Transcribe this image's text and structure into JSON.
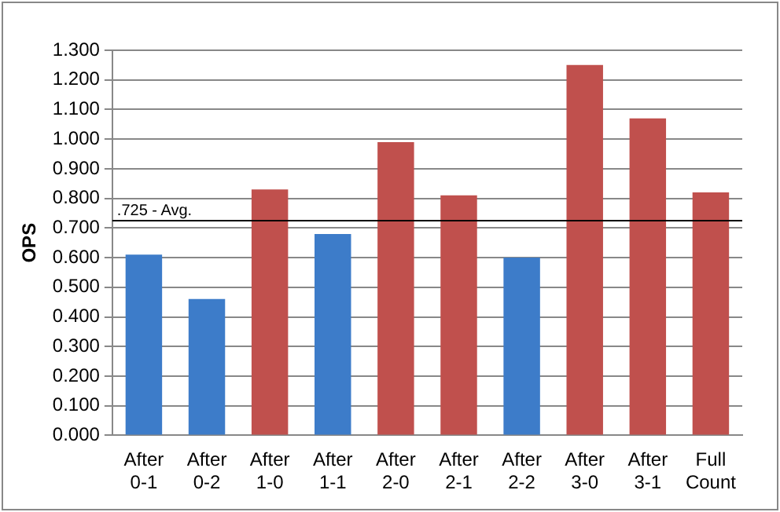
{
  "chart_data": {
    "type": "bar",
    "ylabel": "OPS",
    "categories": [
      "After 0-1",
      "After 0-2",
      "After 1-0",
      "After 1-1",
      "After 2-0",
      "After 2-1",
      "After 2-2",
      "After 3-0",
      "After 3-1",
      "Full Count"
    ],
    "values": [
      0.61,
      0.46,
      0.83,
      0.68,
      0.99,
      0.81,
      0.6,
      1.25,
      1.07,
      0.82
    ],
    "colors": [
      "#3d7cc9",
      "#3d7cc9",
      "#c0504d",
      "#3d7cc9",
      "#c0504d",
      "#c0504d",
      "#3d7cc9",
      "#c0504d",
      "#c0504d",
      "#c0504d"
    ],
    "ylim": [
      0,
      1.3
    ],
    "yticks": [
      {
        "value": 0,
        "label": "0.000"
      },
      {
        "value": 0.1,
        "label": "0.100"
      },
      {
        "value": 0.2,
        "label": "0.200"
      },
      {
        "value": 0.3,
        "label": "0.300"
      },
      {
        "value": 0.4,
        "label": "0.400"
      },
      {
        "value": 0.5,
        "label": "0.500"
      },
      {
        "value": 0.6,
        "label": "0.600"
      },
      {
        "value": 0.7,
        "label": "0.700"
      },
      {
        "value": 0.8,
        "label": "0.800"
      },
      {
        "value": 0.9,
        "label": "0.900"
      },
      {
        "value": 1,
        "label": "1.000"
      },
      {
        "value": 1.1,
        "label": "1.100"
      },
      {
        "value": 1.2,
        "label": "1.200"
      },
      {
        "value": 1.3,
        "label": "1.300"
      }
    ],
    "ref_lines": [
      {
        "axis": "y",
        "value": 0.725,
        "label": ".725 - Avg.",
        "color": "#000000"
      }
    ],
    "grid": "y",
    "legend": false
  }
}
